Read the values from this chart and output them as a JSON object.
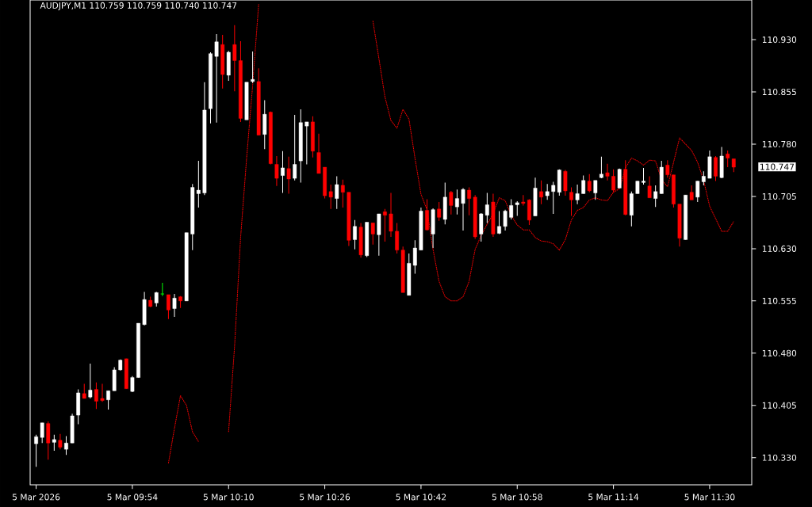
{
  "chart_data": {
    "type": "candlestick",
    "title": "AUDJPY,M1 110.759 110.759 110.740 110.747",
    "x": [
      "2026-03-05T09:38",
      "2026-03-05T09:39",
      "2026-03-05T09:40",
      "2026-03-05T09:41",
      "2026-03-05T09:42",
      "2026-03-05T09:43",
      "2026-03-05T09:44",
      "2026-03-05T09:45",
      "2026-03-05T09:46",
      "2026-03-05T09:47",
      "2026-03-05T09:48",
      "2026-03-05T09:49",
      "2026-03-05T09:50",
      "2026-03-05T09:51",
      "2026-03-05T09:52",
      "2026-03-05T09:53",
      "2026-03-05T09:54",
      "2026-03-05T09:55",
      "2026-03-05T09:56",
      "2026-03-05T09:57",
      "2026-03-05T09:58",
      "2026-03-05T09:59",
      "2026-03-05T10:00",
      "2026-03-05T10:01",
      "2026-03-05T10:02",
      "2026-03-05T10:03",
      "2026-03-05T10:04",
      "2026-03-05T10:05",
      "2026-03-05T10:06",
      "2026-03-05T10:07",
      "2026-03-05T10:08",
      "2026-03-05T10:09",
      "2026-03-05T10:10",
      "2026-03-05T10:11",
      "2026-03-05T10:12",
      "2026-03-05T10:13",
      "2026-03-05T10:14",
      "2026-03-05T10:15",
      "2026-03-05T10:16",
      "2026-03-05T10:17",
      "2026-03-05T10:18",
      "2026-03-05T10:19",
      "2026-03-05T10:20",
      "2026-03-05T10:21",
      "2026-03-05T10:22",
      "2026-03-05T10:23",
      "2026-03-05T10:24",
      "2026-03-05T10:25",
      "2026-03-05T10:26",
      "2026-03-05T10:27",
      "2026-03-05T10:28",
      "2026-03-05T10:29",
      "2026-03-05T10:30",
      "2026-03-05T10:31",
      "2026-03-05T10:32",
      "2026-03-05T10:33",
      "2026-03-05T10:34",
      "2026-03-05T10:35",
      "2026-03-05T10:36",
      "2026-03-05T10:37",
      "2026-03-05T10:38",
      "2026-03-05T10:39",
      "2026-03-05T10:40",
      "2026-03-05T10:41",
      "2026-03-05T10:42",
      "2026-03-05T10:43",
      "2026-03-05T10:44",
      "2026-03-05T10:45",
      "2026-03-05T10:46",
      "2026-03-05T10:47",
      "2026-03-05T10:48",
      "2026-03-05T10:49",
      "2026-03-05T10:50",
      "2026-03-05T10:51",
      "2026-03-05T10:52",
      "2026-03-05T10:53",
      "2026-03-05T10:54",
      "2026-03-05T10:55",
      "2026-03-05T10:56",
      "2026-03-05T10:57",
      "2026-03-05T10:58",
      "2026-03-05T10:59",
      "2026-03-05T11:00",
      "2026-03-05T11:01",
      "2026-03-05T11:02",
      "2026-03-05T11:03",
      "2026-03-05T11:04",
      "2026-03-05T11:05",
      "2026-03-05T11:06",
      "2026-03-05T11:07",
      "2026-03-05T11:08",
      "2026-03-05T11:09",
      "2026-03-05T11:10",
      "2026-03-05T11:11",
      "2026-03-05T11:12",
      "2026-03-05T11:13",
      "2026-03-05T11:14",
      "2026-03-05T11:15",
      "2026-03-05T11:16",
      "2026-03-05T11:17",
      "2026-03-05T11:18",
      "2026-03-05T11:19",
      "2026-03-05T11:20",
      "2026-03-05T11:21",
      "2026-03-05T11:22",
      "2026-03-05T11:23",
      "2026-03-05T11:24",
      "2026-03-05T11:25",
      "2026-03-05T11:26",
      "2026-03-05T11:27",
      "2026-03-05T11:28",
      "2026-03-05T11:29",
      "2026-03-05T11:30",
      "2026-03-05T11:31",
      "2026-03-05T11:32",
      "2026-03-05T11:33",
      "2026-03-05T11:34"
    ],
    "ohlc": [
      [
        110.35,
        110.363,
        110.317,
        110.36
      ],
      [
        110.359,
        110.38,
        110.351,
        110.38
      ],
      [
        110.379,
        110.382,
        110.327,
        110.351
      ],
      [
        110.352,
        110.363,
        110.34,
        110.356
      ],
      [
        110.355,
        110.364,
        110.342,
        110.345
      ],
      [
        110.342,
        110.361,
        110.334,
        110.351
      ],
      [
        110.351,
        110.393,
        110.351,
        110.39
      ],
      [
        110.391,
        110.428,
        110.378,
        110.423
      ],
      [
        110.422,
        110.436,
        110.415,
        110.415
      ],
      [
        110.417,
        110.465,
        110.415,
        110.427
      ],
      [
        110.428,
        110.438,
        110.4,
        110.411
      ],
      [
        110.415,
        110.436,
        110.41,
        110.412
      ],
      [
        110.413,
        110.426,
        110.399,
        110.426
      ],
      [
        110.426,
        110.46,
        110.426,
        110.456
      ],
      [
        110.456,
        110.471,
        110.455,
        110.47
      ],
      [
        110.472,
        110.472,
        110.429,
        110.429
      ],
      [
        110.425,
        110.447,
        110.424,
        110.445
      ],
      [
        110.445,
        110.523,
        110.445,
        110.523
      ],
      [
        110.521,
        110.568,
        110.52,
        110.557
      ],
      [
        110.556,
        110.561,
        110.546,
        110.547
      ],
      [
        110.552,
        110.568,
        110.547,
        110.567
      ],
      [
        110.565,
        110.581,
        110.562,
        110.565
      ],
      [
        110.564,
        110.564,
        110.529,
        110.542
      ],
      [
        110.544,
        110.565,
        110.532,
        110.559
      ],
      [
        110.561,
        110.562,
        110.545,
        110.555
      ],
      [
        110.555,
        110.653,
        110.555,
        110.653
      ],
      [
        110.651,
        110.723,
        110.628,
        110.718
      ],
      [
        110.709,
        110.756,
        110.689,
        110.714
      ],
      [
        110.71,
        110.869,
        110.707,
        110.829
      ],
      [
        110.831,
        110.912,
        110.81,
        110.91
      ],
      [
        110.906,
        110.938,
        110.811,
        110.927
      ],
      [
        110.923,
        110.937,
        110.86,
        110.88
      ],
      [
        110.879,
        110.914,
        110.871,
        110.912
      ],
      [
        110.923,
        110.951,
        110.856,
        110.9
      ],
      [
        110.9,
        110.928,
        110.812,
        110.817
      ],
      [
        110.815,
        110.869,
        110.815,
        110.869
      ],
      [
        110.87,
        110.913,
        110.868,
        110.873
      ],
      [
        110.87,
        110.889,
        110.793,
        110.793
      ],
      [
        110.794,
        110.843,
        110.773,
        110.823
      ],
      [
        110.826,
        110.827,
        110.751,
        110.752
      ],
      [
        110.751,
        110.763,
        110.72,
        110.731
      ],
      [
        110.735,
        110.77,
        110.71,
        110.746
      ],
      [
        110.745,
        110.762,
        110.709,
        110.73
      ],
      [
        110.731,
        110.822,
        110.728,
        110.751
      ],
      [
        110.756,
        110.83,
        110.725,
        110.811
      ],
      [
        110.806,
        110.812,
        110.751,
        110.812
      ],
      [
        110.812,
        110.82,
        110.761,
        110.77
      ],
      [
        110.768,
        110.795,
        110.738,
        110.738
      ],
      [
        110.747,
        110.747,
        110.702,
        110.706
      ],
      [
        110.712,
        110.722,
        110.687,
        110.704
      ],
      [
        110.702,
        110.734,
        110.687,
        110.722
      ],
      [
        110.721,
        110.729,
        110.689,
        110.711
      ],
      [
        110.711,
        110.711,
        110.634,
        110.642
      ],
      [
        110.643,
        110.671,
        110.629,
        110.662
      ],
      [
        110.661,
        110.667,
        110.617,
        110.621
      ],
      [
        110.62,
        110.668,
        110.618,
        110.668
      ],
      [
        110.667,
        110.667,
        110.636,
        110.651
      ],
      [
        110.65,
        110.68,
        110.62,
        110.68
      ],
      [
        110.683,
        110.687,
        110.64,
        110.678
      ],
      [
        110.68,
        110.71,
        110.647,
        110.655
      ],
      [
        110.655,
        110.667,
        110.623,
        110.628
      ],
      [
        110.628,
        110.633,
        110.567,
        110.567
      ],
      [
        110.563,
        110.623,
        110.563,
        110.609
      ],
      [
        110.606,
        110.642,
        110.594,
        110.631
      ],
      [
        110.628,
        110.689,
        110.628,
        110.684
      ],
      [
        110.685,
        110.701,
        110.656,
        110.657
      ],
      [
        110.651,
        110.688,
        110.631,
        110.686
      ],
      [
        110.687,
        110.697,
        110.67,
        110.675
      ],
      [
        110.672,
        110.725,
        110.665,
        110.704
      ],
      [
        110.711,
        110.713,
        110.679,
        110.692
      ],
      [
        110.69,
        110.715,
        110.679,
        110.702
      ],
      [
        110.695,
        110.717,
        110.656,
        110.715
      ],
      [
        110.714,
        110.718,
        110.678,
        110.702
      ],
      [
        110.704,
        110.707,
        110.644,
        110.647
      ],
      [
        110.651,
        110.681,
        110.64,
        110.68
      ],
      [
        110.678,
        110.71,
        110.667,
        110.693
      ],
      [
        110.697,
        110.709,
        110.647,
        110.651
      ],
      [
        110.652,
        110.684,
        110.651,
        110.662
      ],
      [
        110.662,
        110.686,
        110.656,
        110.684
      ],
      [
        110.675,
        110.701,
        110.672,
        110.692
      ],
      [
        110.693,
        110.698,
        110.677,
        110.696
      ],
      [
        110.697,
        110.707,
        110.692,
        110.695
      ],
      [
        110.7,
        110.701,
        110.664,
        110.671
      ],
      [
        110.677,
        110.732,
        110.677,
        110.717
      ],
      [
        110.712,
        110.728,
        110.694,
        110.704
      ],
      [
        110.706,
        110.723,
        110.7,
        110.712
      ],
      [
        110.712,
        110.726,
        110.68,
        110.721
      ],
      [
        110.711,
        110.744,
        110.706,
        110.743
      ],
      [
        110.741,
        110.743,
        110.706,
        110.713
      ],
      [
        110.711,
        110.718,
        110.677,
        110.7
      ],
      [
        110.7,
        110.722,
        110.694,
        110.709
      ],
      [
        110.709,
        110.735,
        110.709,
        110.728
      ],
      [
        110.727,
        110.737,
        110.711,
        110.713
      ],
      [
        110.71,
        110.728,
        110.7,
        110.728
      ],
      [
        110.732,
        110.762,
        110.731,
        110.737
      ],
      [
        110.739,
        110.752,
        110.728,
        110.734
      ],
      [
        110.734,
        110.744,
        110.711,
        110.714
      ],
      [
        110.717,
        110.745,
        110.717,
        110.744
      ],
      [
        110.744,
        110.757,
        110.678,
        110.679
      ],
      [
        110.678,
        110.712,
        110.662,
        110.709
      ],
      [
        110.709,
        110.727,
        110.709,
        110.727
      ],
      [
        110.725,
        110.746,
        110.722,
        110.727
      ],
      [
        110.72,
        110.734,
        110.703,
        110.703
      ],
      [
        110.702,
        110.721,
        110.69,
        110.712
      ],
      [
        110.709,
        110.756,
        110.709,
        110.747
      ],
      [
        110.75,
        110.757,
        110.732,
        110.736
      ],
      [
        110.736,
        110.736,
        110.689,
        110.694
      ],
      [
        110.694,
        110.694,
        110.633,
        110.645
      ],
      [
        110.643,
        110.707,
        110.643,
        110.707
      ],
      [
        110.711,
        110.721,
        110.7,
        110.7
      ],
      [
        110.704,
        110.727,
        110.697,
        110.727
      ],
      [
        110.726,
        110.741,
        110.721,
        110.734
      ],
      [
        110.731,
        110.771,
        110.731,
        110.762
      ],
      [
        110.761,
        110.763,
        110.727,
        110.734
      ],
      [
        110.732,
        110.776,
        110.731,
        110.763
      ],
      [
        110.766,
        110.771,
        110.747,
        110.76
      ],
      [
        110.759,
        110.759,
        110.74,
        110.747
      ]
    ],
    "colors": [
      "#ffffff",
      "#ffffff",
      "#ff0000",
      "#ffffff",
      "#ff0000",
      "#ffffff",
      "#ffffff",
      "#ffffff",
      "#ff0000",
      "#ffffff",
      "#ff0000",
      "#ff0000",
      "#ffffff",
      "#ffffff",
      "#ffffff",
      "#ff0000",
      "#ffffff",
      "#ffffff",
      "#ffffff",
      "#ff0000",
      "#ffffff",
      "#00ff00",
      "#ff0000",
      "#ffffff",
      "#ff0000",
      "#ffffff",
      "#ffffff",
      "#ffffff",
      "#ffffff",
      "#ffffff",
      "#ffffff",
      "#ff0000",
      "#ffffff",
      "#ff0000",
      "#ff0000",
      "#ffffff",
      "#ffffff",
      "#ff0000",
      "#ffffff",
      "#ff0000",
      "#ff0000",
      "#ffffff",
      "#ff0000",
      "#ffffff",
      "#ffffff",
      "#ffffff",
      "#ff0000",
      "#ff0000",
      "#ff0000",
      "#ff0000",
      "#ffffff",
      "#ff0000",
      "#ff0000",
      "#ffffff",
      "#ff0000",
      "#ffffff",
      "#ff0000",
      "#ffffff",
      "#ff0000",
      "#ff0000",
      "#ff0000",
      "#ff0000",
      "#ffffff",
      "#ffffff",
      "#ffffff",
      "#ff0000",
      "#ffffff",
      "#ff0000",
      "#ffffff",
      "#ff0000",
      "#ffffff",
      "#ffffff",
      "#ff0000",
      "#ff0000",
      "#ffffff",
      "#ffffff",
      "#ff0000",
      "#ffffff",
      "#ffffff",
      "#ffffff",
      "#ffffff",
      "#ff0000",
      "#ff0000",
      "#ffffff",
      "#ff0000",
      "#ffffff",
      "#ffffff",
      "#ffffff",
      "#ff0000",
      "#ff0000",
      "#ffffff",
      "#ffffff",
      "#ff0000",
      "#ffffff",
      "#ffffff",
      "#ff0000",
      "#ff0000",
      "#ffffff",
      "#ff0000",
      "#ffffff",
      "#ffffff",
      "#ffffff",
      "#ff0000",
      "#ffffff",
      "#ffffff",
      "#ff0000",
      "#ff0000",
      "#ff0000",
      "#ffffff",
      "#ff0000",
      "#ffffff",
      "#ffffff",
      "#ffffff",
      "#ff0000",
      "#ffffff",
      "#ff0000",
      "#ff0000"
    ],
    "series": [
      {
        "type": "line",
        "color": "#ff0000",
        "line_style": "dotted",
        "values": [
          null,
          null,
          null,
          null,
          null,
          null,
          null,
          null,
          null,
          null,
          null,
          null,
          null,
          null,
          null,
          null,
          null,
          null,
          null,
          null,
          null,
          null,
          110.322,
          110.372,
          110.419,
          110.405,
          110.367,
          110.353,
          null,
          null,
          null,
          null,
          110.367,
          110.49,
          110.646,
          110.76,
          110.864,
          110.981,
          null,
          null,
          null,
          null,
          null,
          null,
          null,
          null,
          null,
          null,
          null,
          null,
          null,
          null,
          null,
          null,
          null,
          null,
          110.957,
          110.903,
          110.848,
          110.814,
          110.803,
          110.83,
          110.816,
          110.76,
          110.708,
          110.686,
          110.629,
          110.583,
          110.561,
          110.555,
          110.555,
          110.561,
          110.583,
          110.629,
          110.649,
          110.665,
          110.68,
          110.703,
          110.699,
          110.678,
          110.664,
          110.657,
          110.657,
          110.646,
          110.641,
          110.64,
          110.637,
          110.628,
          110.643,
          110.671,
          110.685,
          110.689,
          110.7,
          110.703,
          110.7,
          110.699,
          110.711,
          110.716,
          110.746,
          110.76,
          110.756,
          110.75,
          110.757,
          110.756,
          110.729,
          110.719,
          110.754,
          110.789,
          110.78,
          110.771,
          110.754,
          110.728,
          110.691,
          110.673,
          110.655,
          110.655,
          110.669
        ]
      }
    ],
    "xlim": [
      "2026-03-05T09:37",
      "2026-03-05T11:37"
    ],
    "ylim": [
      110.291,
      110.987
    ],
    "xticks": [
      {
        "value": "2026-03-05T09:38",
        "label": "5 Mar 2026"
      },
      {
        "value": "2026-03-05T09:54",
        "label": "5 Mar 09:54"
      },
      {
        "value": "2026-03-05T10:10",
        "label": "5 Mar 10:10"
      },
      {
        "value": "2026-03-05T10:26",
        "label": "5 Mar 10:26"
      },
      {
        "value": "2026-03-05T10:42",
        "label": "5 Mar 10:42"
      },
      {
        "value": "2026-03-05T10:58",
        "label": "5 Mar 10:58"
      },
      {
        "value": "2026-03-05T11:14",
        "label": "5 Mar 11:14"
      },
      {
        "value": "2026-03-05T11:30",
        "label": "5 Mar 11:30"
      }
    ],
    "yticks": [
      {
        "value": 110.33,
        "label": "110.330"
      },
      110.405,
      {
        "value": 110.48,
        "label": "110.480"
      },
      110.555,
      {
        "value": 110.63,
        "label": "110.630"
      },
      110.705,
      {
        "value": 110.78,
        "label": "110.780"
      },
      110.855,
      {
        "value": 110.93,
        "label": "110.930"
      }
    ],
    "annotations": [
      "110.747"
    ]
  }
}
